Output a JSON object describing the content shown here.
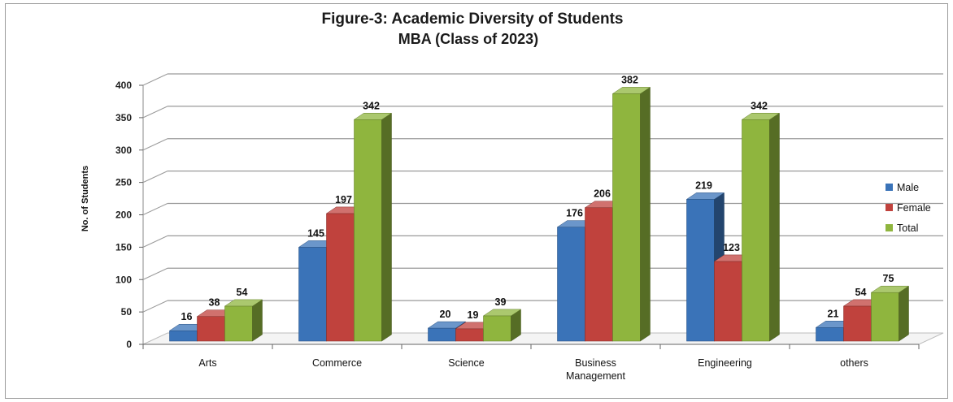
{
  "chart_data": {
    "type": "bar",
    "title": "Figure-3:  Academic Diversity of Students",
    "subtitle": "MBA (Class of 2023)",
    "xlabel": "",
    "ylabel": "No. of Students",
    "ylim": [
      0,
      400
    ],
    "yticks": [
      "0",
      "50",
      "100",
      "150",
      "200",
      "250",
      "300",
      "350",
      "400"
    ],
    "categories": [
      [
        "Arts"
      ],
      [
        "Commerce"
      ],
      [
        "Science"
      ],
      [
        "Business",
        "Management"
      ],
      [
        "Engineering"
      ],
      [
        "others"
      ]
    ],
    "series": [
      {
        "name": "Male",
        "color": "#3a73b8",
        "values": [
          16,
          145,
          20,
          176,
          219,
          21
        ]
      },
      {
        "name": "Female",
        "color": "#c0423d",
        "values": [
          38,
          197,
          19,
          206,
          123,
          54
        ]
      },
      {
        "name": "Total",
        "color": "#8fb53e",
        "values": [
          54,
          342,
          39,
          382,
          342,
          75
        ]
      }
    ],
    "grid": true,
    "legend_position": "right",
    "style": "3d-clustered-column"
  }
}
